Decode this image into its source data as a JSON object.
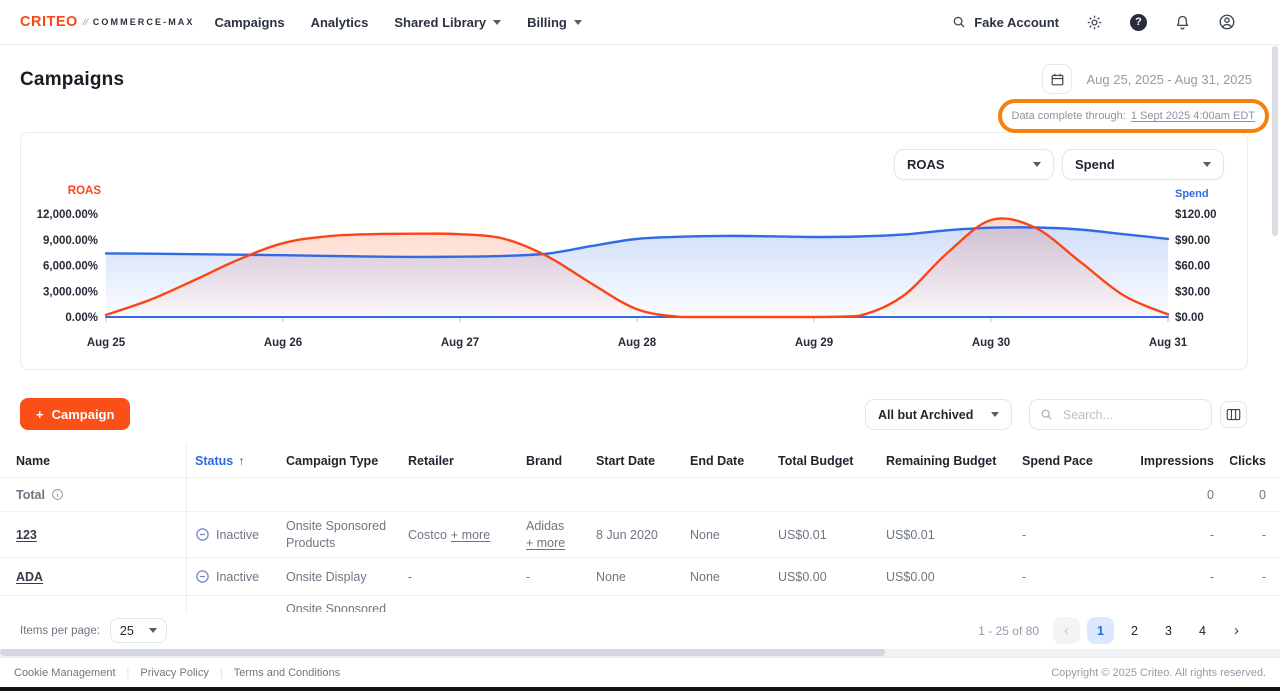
{
  "nav": {
    "logo": "CRITEO",
    "logo_divider": "//",
    "brand": "COMMERCE-MAX",
    "items": [
      {
        "label": "Campaigns",
        "has_menu": false
      },
      {
        "label": "Analytics",
        "has_menu": false
      },
      {
        "label": "Shared Library",
        "has_menu": true
      },
      {
        "label": "Billing",
        "has_menu": true
      }
    ],
    "account_search": "Fake Account"
  },
  "header": {
    "title": "Campaigns",
    "date_range": "Aug 25, 2025 - Aug 31, 2025",
    "data_complete": {
      "label": "Data complete through:",
      "link": "1 Sept 2025 4:00am EDT"
    }
  },
  "chart_controls": {
    "metric_left": "ROAS",
    "metric_right": "Spend"
  },
  "chart_data": {
    "type": "line",
    "title": "",
    "grid": false,
    "legend": "none",
    "x_labels": [
      "Aug 25",
      "Aug 26",
      "Aug 27",
      "Aug 28",
      "Aug 29",
      "Aug 30",
      "Aug 31"
    ],
    "left_axis": {
      "label": "ROAS",
      "color": "#fa4616",
      "min": 0,
      "max": 12000,
      "ticks": [
        {
          "value": 12000,
          "label": "12,000.00%"
        },
        {
          "value": 9000,
          "label": "9,000.00%"
        },
        {
          "value": 6000,
          "label": "6,000.00%"
        },
        {
          "value": 3000,
          "label": "3,000.00%"
        },
        {
          "value": 0,
          "label": "0.00%"
        }
      ]
    },
    "right_axis": {
      "label": "Spend",
      "color": "#2f6be5",
      "min": 0,
      "max": 120,
      "ticks": [
        {
          "value": 120,
          "label": "$120.00"
        },
        {
          "value": 90,
          "label": "$90.00"
        },
        {
          "value": 60,
          "label": "$60.00"
        },
        {
          "value": 30,
          "label": "$30.00"
        },
        {
          "value": 0,
          "label": "$0.00"
        }
      ]
    },
    "series": [
      {
        "name": "ROAS",
        "axis": "left",
        "color": "#fa4616",
        "area": true,
        "x": [
          0,
          0.25,
          0.5,
          0.75,
          1,
          1.25,
          1.5,
          1.75,
          2,
          2.25,
          2.5,
          2.75,
          3,
          3.25,
          3.5,
          3.75,
          4,
          4.25,
          4.5,
          4.75,
          5,
          5.25,
          5.5,
          5.75,
          6
        ],
        "values": [
          250,
          2000,
          4300,
          6700,
          8600,
          9400,
          9650,
          9700,
          9650,
          9100,
          7000,
          3800,
          900,
          0,
          0,
          0,
          0,
          120,
          2400,
          7400,
          11300,
          10400,
          6500,
          2500,
          300
        ]
      },
      {
        "name": "Spend",
        "axis": "right",
        "color": "#2f6be5",
        "area": true,
        "x": [
          0,
          0.25,
          0.5,
          0.75,
          1,
          1.25,
          1.5,
          1.75,
          2,
          2.25,
          2.5,
          2.75,
          3,
          3.25,
          3.5,
          3.75,
          4,
          4.25,
          4.5,
          4.75,
          5,
          5.25,
          5.5,
          5.75,
          6
        ],
        "values": [
          74,
          73.8,
          73.2,
          72.6,
          72,
          71.2,
          70.4,
          70,
          70.2,
          71.2,
          74,
          83,
          91,
          93.5,
          94.5,
          94,
          93.2,
          93.8,
          96,
          101,
          104,
          104.3,
          102,
          96.5,
          91
        ]
      },
      {
        "name": "Spend zero baseline",
        "axis": "right",
        "color": "#2f6be5",
        "area": false,
        "x": [
          0,
          6
        ],
        "values": [
          0,
          0
        ]
      }
    ]
  },
  "toolbar": {
    "plus": "+",
    "new_campaign_label": "Campaign",
    "status_filter": "All but Archived",
    "search_placeholder": "Search..."
  },
  "table": {
    "columns": [
      "Name",
      "Status",
      "Campaign Type",
      "Retailer",
      "Brand",
      "Start Date",
      "End Date",
      "Total Budget",
      "Remaining Budget",
      "Spend Pace",
      "Impressions",
      "Clicks"
    ],
    "sort_column": "Status",
    "sort_arrow": "↑",
    "total_row": {
      "label": "Total",
      "impressions": "0",
      "clicks": "0"
    },
    "rows": [
      {
        "name": "123",
        "status": "Inactive",
        "campaign_type": "Onsite Sponsored Products",
        "retailer": "Costco",
        "retailer_more": "+ more",
        "brand": "Adidas",
        "brand_more": "+ more",
        "start_date": "8 Jun 2020",
        "end_date": "None",
        "total_budget": "US$0.01",
        "remaining_budget": "US$0.01",
        "spend_pace": "-",
        "impressions": "-",
        "clicks": "-"
      },
      {
        "name": "ADA",
        "status": "Inactive",
        "campaign_type": "Onsite Display",
        "retailer": "-",
        "retailer_more": "",
        "brand": "-",
        "brand_more": "",
        "start_date": "None",
        "end_date": "None",
        "total_budget": "US$0.00",
        "remaining_budget": "US$0.00",
        "spend_pace": "-",
        "impressions": "-",
        "clicks": "-"
      }
    ],
    "partial_row": {
      "campaign_type": "Onsite Sponsored Products"
    }
  },
  "pagination": {
    "items_per_page_label": "Items per page:",
    "items_per_page": "25",
    "range": "1 - 25 of 80",
    "prev": "‹",
    "pages": [
      "1",
      "2",
      "3",
      "4"
    ],
    "active_page": "1",
    "next": "›"
  },
  "footer": {
    "links": [
      "Cookie Management",
      "Privacy Policy",
      "Terms and Conditions"
    ],
    "copyright": "Copyright © 2025 Criteo. All rights reserved."
  },
  "colors": {
    "accent_orange": "#fa4616",
    "campaign_button": "#fa4f17",
    "line_red": "#fa4616",
    "line_blue": "#2f6be5",
    "highlight_ring": "#f5820e",
    "status_sort_blue": "#2d6ae3",
    "inactive_icon_blue": "#7186c7"
  }
}
